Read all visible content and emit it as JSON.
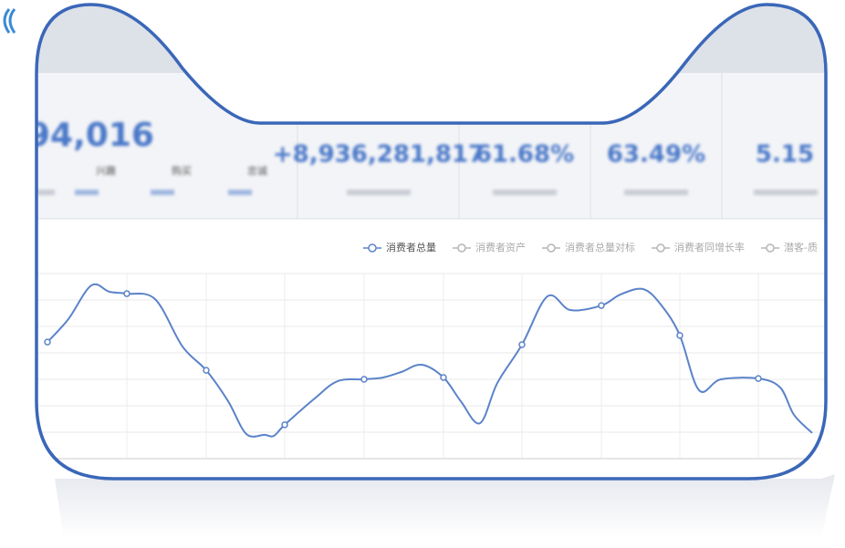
{
  "stats": {
    "cards": [
      {
        "value": "94,016",
        "subitems": [
          "兴趣",
          "购买",
          "忠诚"
        ]
      },
      {
        "value": "+8,936,281,817"
      },
      {
        "value": "61.68%"
      },
      {
        "value": "63.49%"
      },
      {
        "value": "5.15"
      }
    ]
  },
  "chart_data": {
    "type": "line",
    "x": [
      52,
      75,
      100,
      120,
      139,
      170,
      200,
      226,
      250,
      270,
      290,
      300,
      312,
      345,
      370,
      399,
      420,
      440,
      462,
      486,
      505,
      526,
      545,
      572,
      600,
      625,
      659,
      680,
      705,
      725,
      745,
      766,
      790,
      831,
      855,
      870,
      890
    ],
    "series": [
      {
        "name": "消费者总量",
        "color": "#5b83c9",
        "values": [
          4.41,
          5.28,
          6.55,
          6.31,
          6.24,
          6.03,
          4.24,
          3.34,
          2.17,
          0.93,
          0.9,
          0.86,
          1.28,
          2.28,
          2.93,
          3.0,
          3.07,
          3.28,
          3.55,
          3.07,
          2.17,
          1.34,
          2.86,
          4.31,
          6.14,
          5.62,
          5.79,
          6.21,
          6.41,
          5.79,
          4.66,
          2.59,
          3.0,
          3.03,
          2.69,
          1.66,
          0.97
        ],
        "markers": [
          0,
          4,
          7,
          12,
          15,
          19,
          23,
          26,
          30,
          33
        ]
      },
      {
        "name": "消费者资产",
        "color": "#b5b5b5"
      },
      {
        "name": "消费者总量对标",
        "color": "#b5b5b5"
      },
      {
        "name": "消费者同增长率",
        "color": "#b5b5b5"
      },
      {
        "name": "潜客-质",
        "color": "#b5b5b5"
      }
    ],
    "xlim": [
      40,
      905
    ],
    "ylim": [
      0,
      7
    ],
    "yticks": [
      0,
      1,
      2,
      3,
      4,
      5,
      6,
      7
    ],
    "xgrid": [
      139,
      226,
      312,
      399,
      486,
      572,
      659,
      745,
      831
    ],
    "grid": true
  }
}
